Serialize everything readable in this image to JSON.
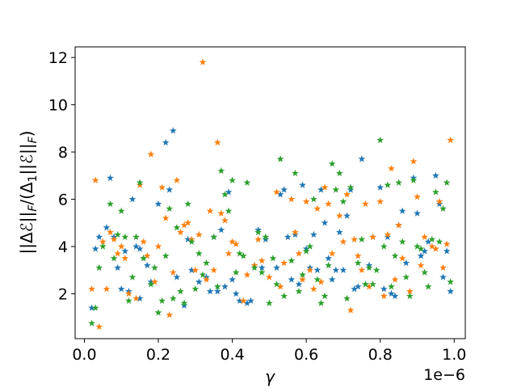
{
  "chart_data": {
    "type": "scatter",
    "title": "",
    "xlabel": "γ",
    "ylabel": "||ΔE||F/(Δ1||E||F)",
    "ylabel_display": {
      "p1": "||Δ",
      "p2": "ℰ",
      "p3": "||",
      "p4": "F",
      "p5": "/(Δ",
      "p6": "1",
      "p7": "||",
      "p8": "ℰ",
      "p9": "||",
      "p10": "F",
      "p11": ")"
    },
    "x_offset_label": "1e−6",
    "xlim": [
      -0.025,
      1.03
    ],
    "ylim": [
      0.1,
      12.45
    ],
    "xticks": [
      0.0,
      0.2,
      0.4,
      0.6,
      0.8,
      1.0
    ],
    "xtick_labels": [
      "0.0",
      "0.2",
      "0.4",
      "0.6",
      "0.8",
      "1.0"
    ],
    "yticks": [
      2,
      4,
      6,
      8,
      10,
      12
    ],
    "ytick_labels": [
      "2",
      "4",
      "6",
      "8",
      "10",
      "12"
    ],
    "grid": false,
    "legend": false,
    "marker": "star",
    "series": [
      {
        "color": "#1f77b4",
        "points": [
          [
            0.02,
            1.4
          ],
          [
            0.03,
            3.9
          ],
          [
            0.04,
            4.4
          ],
          [
            0.06,
            4.8
          ],
          [
            0.07,
            6.9
          ],
          [
            0.08,
            4.4
          ],
          [
            0.09,
            3.1
          ],
          [
            0.1,
            2.2
          ],
          [
            0.11,
            3.8
          ],
          [
            0.12,
            2.1
          ],
          [
            0.13,
            6.0
          ],
          [
            0.14,
            4.0
          ],
          [
            0.15,
            3.9
          ],
          [
            0.15,
            1.8
          ],
          [
            0.16,
            3.5
          ],
          [
            0.17,
            3.2
          ],
          [
            0.18,
            2.5
          ],
          [
            0.2,
            5.8
          ],
          [
            0.22,
            8.4
          ],
          [
            0.23,
            6.4
          ],
          [
            0.24,
            8.9
          ],
          [
            0.25,
            2.7
          ],
          [
            0.27,
            1.5
          ],
          [
            0.28,
            4.3
          ],
          [
            0.29,
            3.0
          ],
          [
            0.31,
            2.5
          ],
          [
            0.33,
            2.7
          ],
          [
            0.34,
            2.1
          ],
          [
            0.35,
            4.4
          ],
          [
            0.36,
            2.1
          ],
          [
            0.37,
            4.7
          ],
          [
            0.38,
            2.3
          ],
          [
            0.39,
            6.3
          ],
          [
            0.4,
            2.6
          ],
          [
            0.41,
            2.0
          ],
          [
            0.42,
            1.7
          ],
          [
            0.44,
            1.6
          ],
          [
            0.45,
            1.7
          ],
          [
            0.46,
            3.2
          ],
          [
            0.47,
            4.7
          ],
          [
            0.48,
            3.1
          ],
          [
            0.49,
            4.3
          ],
          [
            0.52,
            3.1
          ],
          [
            0.53,
            6.2
          ],
          [
            0.54,
            6.4
          ],
          [
            0.55,
            4.4
          ],
          [
            0.56,
            2.6
          ],
          [
            0.57,
            4.5
          ],
          [
            0.58,
            2.4
          ],
          [
            0.59,
            6.6
          ],
          [
            0.6,
            3.9
          ],
          [
            0.61,
            3.1
          ],
          [
            0.62,
            4.5
          ],
          [
            0.63,
            3.0
          ],
          [
            0.64,
            6.4
          ],
          [
            0.65,
            5.0
          ],
          [
            0.66,
            3.5
          ],
          [
            0.67,
            2.6
          ],
          [
            0.68,
            3.0
          ],
          [
            0.69,
            4.6
          ],
          [
            0.7,
            3.0
          ],
          [
            0.71,
            5.3
          ],
          [
            0.72,
            6.4
          ],
          [
            0.73,
            2.2
          ],
          [
            0.74,
            2.3
          ],
          [
            0.75,
            7.7
          ],
          [
            0.76,
            2.4
          ],
          [
            0.77,
            3.2
          ],
          [
            0.78,
            4.4
          ],
          [
            0.8,
            6.5
          ],
          [
            0.81,
            2.2
          ],
          [
            0.82,
            4.4
          ],
          [
            0.83,
            2.0
          ],
          [
            0.84,
            1.9
          ],
          [
            0.85,
            4.9
          ],
          [
            0.86,
            5.5
          ],
          [
            0.87,
            3.3
          ],
          [
            0.89,
            6.9
          ],
          [
            0.9,
            5.4
          ],
          [
            0.91,
            3.6
          ],
          [
            0.92,
            3.8
          ],
          [
            0.93,
            4.2
          ],
          [
            0.95,
            7.0
          ],
          [
            0.96,
            5.8
          ],
          [
            0.97,
            2.7
          ],
          [
            0.98,
            3.8
          ],
          [
            0.99,
            2.1
          ]
        ]
      },
      {
        "color": "#ff7f0e",
        "points": [
          [
            0.02,
            2.2
          ],
          [
            0.03,
            6.8
          ],
          [
            0.04,
            0.6
          ],
          [
            0.05,
            4.2
          ],
          [
            0.06,
            2.2
          ],
          [
            0.07,
            4.6
          ],
          [
            0.08,
            4.3
          ],
          [
            0.09,
            3.7
          ],
          [
            0.1,
            4.0
          ],
          [
            0.11,
            3.5
          ],
          [
            0.12,
            2.0
          ],
          [
            0.14,
            1.8
          ],
          [
            0.15,
            6.6
          ],
          [
            0.16,
            4.2
          ],
          [
            0.17,
            3.6
          ],
          [
            0.18,
            7.9
          ],
          [
            0.19,
            2.5
          ],
          [
            0.2,
            4.0
          ],
          [
            0.21,
            6.5
          ],
          [
            0.22,
            5.2
          ],
          [
            0.23,
            1.1
          ],
          [
            0.24,
            2.9
          ],
          [
            0.25,
            6.8
          ],
          [
            0.26,
            4.6
          ],
          [
            0.27,
            4.9
          ],
          [
            0.28,
            5.0
          ],
          [
            0.29,
            4.3
          ],
          [
            0.3,
            3.0
          ],
          [
            0.31,
            4.5
          ],
          [
            0.32,
            11.8
          ],
          [
            0.33,
            2.6
          ],
          [
            0.34,
            5.5
          ],
          [
            0.35,
            3.0
          ],
          [
            0.36,
            8.4
          ],
          [
            0.37,
            5.4
          ],
          [
            0.38,
            5.1
          ],
          [
            0.39,
            3.7
          ],
          [
            0.4,
            4.2
          ],
          [
            0.41,
            4.1
          ],
          [
            0.43,
            1.7
          ],
          [
            0.44,
            2.8
          ],
          [
            0.46,
            3.2
          ],
          [
            0.47,
            4.3
          ],
          [
            0.48,
            3.4
          ],
          [
            0.5,
            2.7
          ],
          [
            0.52,
            6.3
          ],
          [
            0.53,
            2.3
          ],
          [
            0.54,
            3.3
          ],
          [
            0.56,
            6.0
          ],
          [
            0.57,
            4.6
          ],
          [
            0.58,
            3.7
          ],
          [
            0.59,
            2.6
          ],
          [
            0.6,
            5.9
          ],
          [
            0.61,
            3.0
          ],
          [
            0.62,
            2.2
          ],
          [
            0.63,
            5.6
          ],
          [
            0.64,
            2.5
          ],
          [
            0.65,
            6.5
          ],
          [
            0.66,
            5.8
          ],
          [
            0.67,
            3.7
          ],
          [
            0.69,
            5.3
          ],
          [
            0.7,
            4.2
          ],
          [
            0.71,
            6.2
          ],
          [
            0.72,
            1.3
          ],
          [
            0.73,
            4.3
          ],
          [
            0.74,
            3.6
          ],
          [
            0.75,
            3.0
          ],
          [
            0.76,
            5.8
          ],
          [
            0.77,
            2.3
          ],
          [
            0.78,
            4.4
          ],
          [
            0.8,
            5.9
          ],
          [
            0.81,
            1.9
          ],
          [
            0.82,
            4.5
          ],
          [
            0.83,
            7.3
          ],
          [
            0.84,
            2.6
          ],
          [
            0.85,
            4.9
          ],
          [
            0.86,
            3.5
          ],
          [
            0.88,
            2.1
          ],
          [
            0.89,
            7.6
          ],
          [
            0.9,
            6.1
          ],
          [
            0.91,
            3.2
          ],
          [
            0.92,
            4.4
          ],
          [
            0.94,
            4.0
          ],
          [
            0.95,
            3.9
          ],
          [
            0.96,
            5.9
          ],
          [
            0.97,
            3.1
          ],
          [
            0.98,
            4.1
          ],
          [
            0.99,
            8.5
          ]
        ]
      },
      {
        "color": "#2ca02c",
        "points": [
          [
            0.02,
            0.75
          ],
          [
            0.03,
            1.4
          ],
          [
            0.04,
            3.1
          ],
          [
            0.05,
            4.0
          ],
          [
            0.07,
            5.8
          ],
          [
            0.08,
            3.5
          ],
          [
            0.09,
            4.5
          ],
          [
            0.1,
            5.5
          ],
          [
            0.11,
            4.4
          ],
          [
            0.12,
            1.7
          ],
          [
            0.13,
            2.7
          ],
          [
            0.14,
            4.4
          ],
          [
            0.15,
            6.7
          ],
          [
            0.16,
            3.5
          ],
          [
            0.18,
            2.4
          ],
          [
            0.19,
            3.1
          ],
          [
            0.2,
            1.2
          ],
          [
            0.21,
            1.7
          ],
          [
            0.22,
            3.6
          ],
          [
            0.23,
            5.6
          ],
          [
            0.24,
            1.8
          ],
          [
            0.25,
            4.8
          ],
          [
            0.26,
            2.1
          ],
          [
            0.27,
            1.6
          ],
          [
            0.28,
            5.8
          ],
          [
            0.29,
            4.2
          ],
          [
            0.3,
            2.2
          ],
          [
            0.31,
            3.7
          ],
          [
            0.32,
            2.8
          ],
          [
            0.33,
            3.3
          ],
          [
            0.35,
            4.4
          ],
          [
            0.36,
            2.3
          ],
          [
            0.37,
            7.2
          ],
          [
            0.38,
            6.2
          ],
          [
            0.39,
            5.5
          ],
          [
            0.4,
            6.8
          ],
          [
            0.41,
            2.9
          ],
          [
            0.42,
            3.7
          ],
          [
            0.43,
            3.6
          ],
          [
            0.44,
            6.7
          ],
          [
            0.46,
            3.1
          ],
          [
            0.47,
            4.6
          ],
          [
            0.48,
            2.9
          ],
          [
            0.49,
            4.4
          ],
          [
            0.5,
            1.6
          ],
          [
            0.51,
            3.5
          ],
          [
            0.52,
            2.4
          ],
          [
            0.53,
            7.7
          ],
          [
            0.54,
            1.9
          ],
          [
            0.56,
            3.4
          ],
          [
            0.57,
            7.1
          ],
          [
            0.58,
            2.1
          ],
          [
            0.59,
            2.8
          ],
          [
            0.6,
            3.8
          ],
          [
            0.61,
            4.0
          ],
          [
            0.62,
            6.0
          ],
          [
            0.63,
            2.6
          ],
          [
            0.64,
            1.6
          ],
          [
            0.65,
            1.9
          ],
          [
            0.66,
            3.2
          ],
          [
            0.67,
            7.5
          ],
          [
            0.68,
            6.4
          ],
          [
            0.69,
            7.1
          ],
          [
            0.7,
            5.9
          ],
          [
            0.71,
            1.8
          ],
          [
            0.72,
            6.5
          ],
          [
            0.74,
            3.3
          ],
          [
            0.75,
            4.3
          ],
          [
            0.76,
            2.4
          ],
          [
            0.77,
            3.1
          ],
          [
            0.78,
            2.4
          ],
          [
            0.79,
            3.0
          ],
          [
            0.8,
            8.5
          ],
          [
            0.81,
            4.0
          ],
          [
            0.82,
            6.6
          ],
          [
            0.83,
            2.3
          ],
          [
            0.84,
            3.6
          ],
          [
            0.85,
            6.7
          ],
          [
            0.86,
            4.2
          ],
          [
            0.87,
            2.7
          ],
          [
            0.88,
            1.9
          ],
          [
            0.89,
            6.8
          ],
          [
            0.9,
            4.0
          ],
          [
            0.91,
            3.9
          ],
          [
            0.92,
            2.9
          ],
          [
            0.93,
            2.3
          ],
          [
            0.94,
            4.3
          ],
          [
            0.95,
            6.3
          ],
          [
            0.96,
            4.2
          ],
          [
            0.97,
            5.6
          ],
          [
            0.98,
            6.7
          ],
          [
            0.99,
            2.5
          ]
        ]
      }
    ]
  }
}
